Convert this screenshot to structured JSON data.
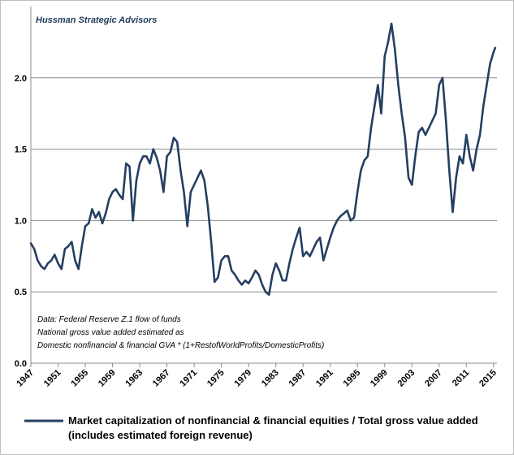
{
  "source_label": "Hussman Strategic Advisors",
  "notes": [
    "Data:  Federal Reserve Z.1 flow of funds",
    "National gross value added estimated as",
    "Domestic nonfinancial  & financial GVA * (1+RestofWorldProfits/DomesticProfits)"
  ],
  "legend": {
    "lines": [
      "Market capitalization of nonfinancial & financial equities / Total gross value added",
      "(includes estimated foreign revenue)"
    ]
  },
  "chart_data": {
    "type": "line",
    "title": "",
    "xlabel": "",
    "ylabel": "",
    "xlim": [
      1947,
      2015.5
    ],
    "ylim": [
      0,
      2.5
    ],
    "y_ticks": [
      "0.0",
      "0.5",
      "1.0",
      "1.5",
      "2.0"
    ],
    "x_ticks": [
      "1947",
      "1951",
      "1955",
      "1959",
      "1963",
      "1967",
      "1971",
      "1975",
      "1979",
      "1983",
      "1987",
      "1991",
      "1995",
      "1999",
      "2003",
      "2007",
      "2011",
      "2015"
    ],
    "grid": "horizontal",
    "legend_position": "bottom",
    "line_color": "#243f60",
    "series": [
      {
        "name": "Market capitalization of nonfinancial & financial equities / Total gross value added (includes estimated foreign revenue)",
        "x": [
          1947.0,
          1947.5,
          1948.0,
          1948.5,
          1949.0,
          1949.5,
          1950.0,
          1950.5,
          1951.0,
          1951.5,
          1952.0,
          1952.5,
          1953.0,
          1953.5,
          1954.0,
          1954.5,
          1955.0,
          1955.5,
          1956.0,
          1956.5,
          1957.0,
          1957.5,
          1958.0,
          1958.5,
          1959.0,
          1959.5,
          1960.0,
          1960.5,
          1961.0,
          1961.5,
          1962.0,
          1962.5,
          1963.0,
          1963.5,
          1964.0,
          1964.5,
          1965.0,
          1965.5,
          1966.0,
          1966.5,
          1967.0,
          1967.5,
          1968.0,
          1968.5,
          1969.0,
          1969.5,
          1970.0,
          1970.5,
          1971.0,
          1971.5,
          1972.0,
          1972.5,
          1973.0,
          1973.5,
          1974.0,
          1974.5,
          1975.0,
          1975.5,
          1976.0,
          1976.5,
          1977.0,
          1977.5,
          1978.0,
          1978.5,
          1979.0,
          1979.5,
          1980.0,
          1980.5,
          1981.0,
          1981.5,
          1982.0,
          1982.5,
          1983.0,
          1983.5,
          1984.0,
          1984.5,
          1985.0,
          1985.5,
          1986.0,
          1986.5,
          1987.0,
          1987.5,
          1988.0,
          1988.5,
          1989.0,
          1989.5,
          1990.0,
          1990.5,
          1991.0,
          1991.5,
          1992.0,
          1992.5,
          1993.0,
          1993.5,
          1994.0,
          1994.5,
          1995.0,
          1995.5,
          1996.0,
          1996.5,
          1997.0,
          1997.5,
          1998.0,
          1998.5,
          1999.0,
          1999.5,
          2000.0,
          2000.5,
          2001.0,
          2001.5,
          2002.0,
          2002.5,
          2003.0,
          2003.5,
          2004.0,
          2004.5,
          2005.0,
          2005.5,
          2006.0,
          2006.5,
          2007.0,
          2007.5,
          2008.0,
          2008.5,
          2009.0,
          2009.5,
          2010.0,
          2010.5,
          2011.0,
          2011.5,
          2012.0,
          2012.5,
          2013.0,
          2013.5,
          2014.0,
          2014.5,
          2015.0,
          2015.25
        ],
        "values": [
          0.84,
          0.8,
          0.72,
          0.68,
          0.66,
          0.7,
          0.72,
          0.76,
          0.7,
          0.66,
          0.8,
          0.82,
          0.85,
          0.72,
          0.66,
          0.82,
          0.96,
          0.98,
          1.08,
          1.02,
          1.06,
          0.98,
          1.05,
          1.15,
          1.2,
          1.22,
          1.18,
          1.15,
          1.4,
          1.38,
          1.0,
          1.28,
          1.4,
          1.45,
          1.45,
          1.4,
          1.5,
          1.44,
          1.35,
          1.2,
          1.45,
          1.48,
          1.58,
          1.55,
          1.35,
          1.2,
          0.96,
          1.2,
          1.25,
          1.3,
          1.35,
          1.28,
          1.1,
          0.85,
          0.57,
          0.6,
          0.72,
          0.75,
          0.75,
          0.65,
          0.62,
          0.58,
          0.55,
          0.58,
          0.56,
          0.6,
          0.65,
          0.62,
          0.55,
          0.5,
          0.48,
          0.62,
          0.7,
          0.65,
          0.58,
          0.58,
          0.7,
          0.8,
          0.88,
          0.95,
          0.75,
          0.78,
          0.75,
          0.8,
          0.85,
          0.88,
          0.72,
          0.8,
          0.88,
          0.95,
          1.0,
          1.03,
          1.05,
          1.07,
          1.0,
          1.02,
          1.2,
          1.35,
          1.42,
          1.45,
          1.65,
          1.8,
          1.95,
          1.75,
          2.15,
          2.25,
          2.38,
          2.2,
          1.95,
          1.75,
          1.58,
          1.3,
          1.25,
          1.45,
          1.62,
          1.65,
          1.6,
          1.65,
          1.7,
          1.75,
          1.95,
          2.0,
          1.7,
          1.35,
          1.06,
          1.3,
          1.45,
          1.4,
          1.6,
          1.45,
          1.35,
          1.5,
          1.6,
          1.8,
          1.95,
          2.1,
          2.18,
          2.21
        ]
      }
    ]
  }
}
